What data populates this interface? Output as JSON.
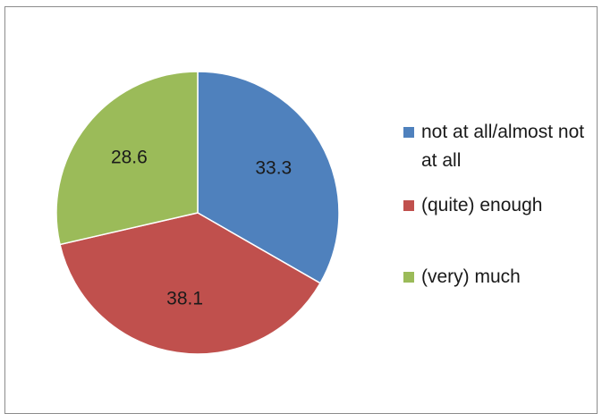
{
  "chart_data": {
    "type": "pie",
    "categories": [
      "not at all/almost not at all",
      "(quite) enough",
      "(very) much"
    ],
    "values": [
      33.3,
      38.1,
      28.6
    ],
    "data_labels": [
      "33.3",
      "38.1",
      "28.6"
    ],
    "colors": [
      "#4f81bd",
      "#c0504d",
      "#9bbb59"
    ],
    "start_angle": "12 o'clock",
    "direction": "clockwise",
    "legend_position": "right"
  }
}
